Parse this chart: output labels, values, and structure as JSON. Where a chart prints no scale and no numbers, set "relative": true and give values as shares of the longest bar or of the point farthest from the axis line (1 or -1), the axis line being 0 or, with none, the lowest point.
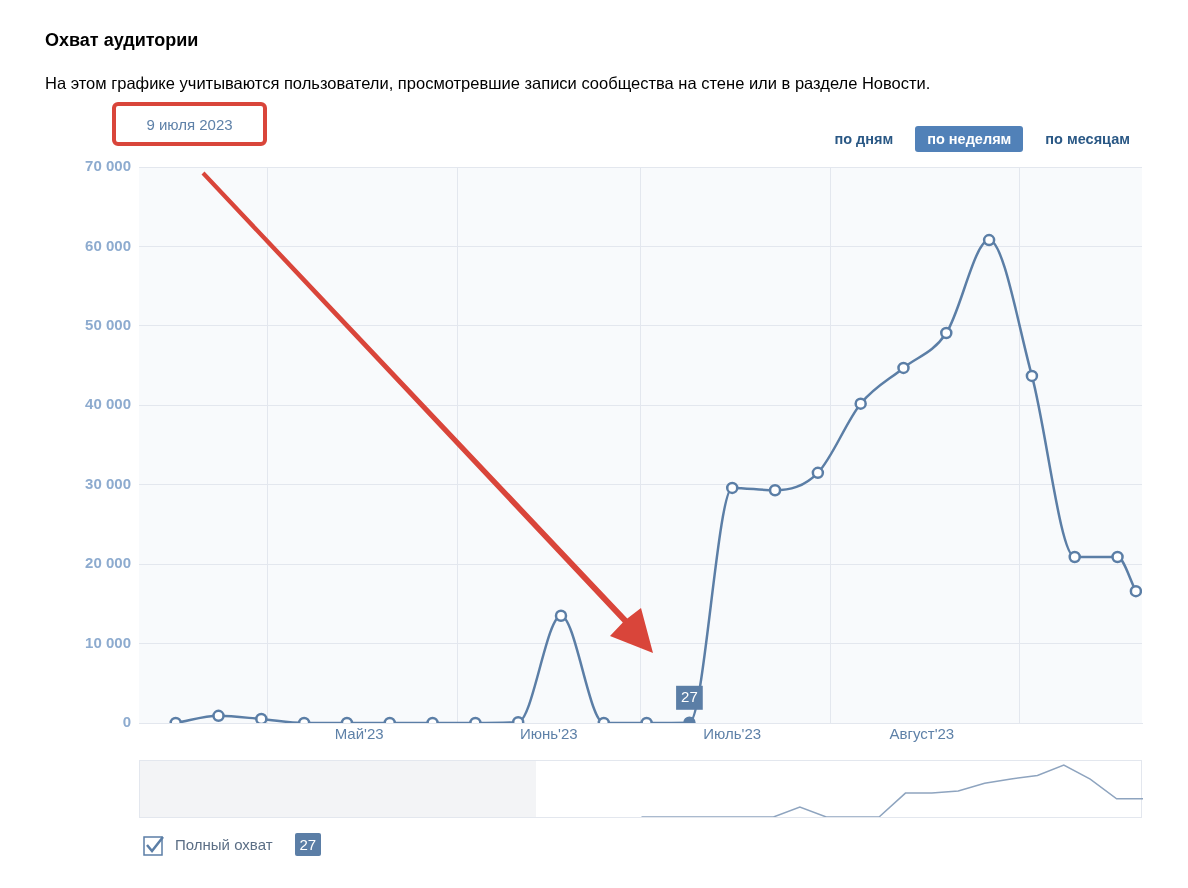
{
  "chart_data": [
    {
      "type": "line",
      "title": "Охват аудитории",
      "subtitle": "На этом графике учитываются пользователи, просмотревшие записи сообщества на стене или в разделе Новости.",
      "x": [
        "2023-04-16",
        "2023-04-23",
        "2023-04-30",
        "2023-05-07",
        "2023-05-14",
        "2023-05-21",
        "2023-05-28",
        "2023-06-04",
        "2023-06-11",
        "2023-06-18",
        "2023-06-25",
        "2023-07-02",
        "2023-07-09",
        "2023-07-16",
        "2023-07-23",
        "2023-07-30",
        "2023-08-06",
        "2023-08-13",
        "2023-08-20",
        "2023-08-27",
        "2023-09-03",
        "2023-09-10",
        "2023-09-17",
        "2023-09-20"
      ],
      "series": [
        {
          "name": "Полный охват",
          "color": "#5b7ea6",
          "values": [
            0,
            900,
            500,
            0,
            0,
            0,
            0,
            0,
            100,
            13500,
            0,
            0,
            27,
            29600,
            29300,
            31500,
            40200,
            44700,
            49100,
            60800,
            43700,
            20900,
            20900,
            16600
          ],
          "value_labels": [
            null,
            null,
            null,
            null,
            null,
            null,
            null,
            null,
            null,
            null,
            null,
            null,
            "27",
            null,
            null,
            null,
            null,
            null,
            null,
            null,
            null,
            null,
            null,
            null
          ]
        }
      ],
      "xlim": [
        "2023-04-10",
        "2023-09-21"
      ],
      "xticks": [
        {
          "value": "2023-05-01",
          "label": null
        },
        {
          "value": "2023-05-16",
          "label": "Май'23"
        },
        {
          "value": "2023-06-01",
          "label": null
        },
        {
          "value": "2023-06-16",
          "label": "Июнь'23"
        },
        {
          "value": "2023-07-01",
          "label": null
        },
        {
          "value": "2023-07-16",
          "label": "Июль'23"
        },
        {
          "value": "2023-08-01",
          "label": null
        },
        {
          "value": "2023-08-16",
          "label": "Август'23"
        },
        {
          "value": "2023-09-01",
          "label": null
        }
      ],
      "ylim": [
        0,
        70000
      ],
      "yticks": [
        {
          "value": 0,
          "label": "0"
        },
        {
          "value": 10000,
          "label": "10 000"
        },
        {
          "value": 20000,
          "label": "20 000"
        },
        {
          "value": 30000,
          "label": "30 000"
        },
        {
          "value": 40000,
          "label": "40 000"
        },
        {
          "value": 50000,
          "label": "50 000"
        },
        {
          "value": 60000,
          "label": "60 000"
        },
        {
          "value": 70000,
          "label": "70 000"
        }
      ],
      "grid": true,
      "marker": "circle",
      "line_style": "solid",
      "legend": "bottom left",
      "annotations": [
        "9 июля 2023",
        "по дням",
        "по неделям",
        "по месяцам",
        "27"
      ]
    },
    {
      "type": "line",
      "relative": true,
      "categories": [
        null,
        null,
        null,
        null,
        null,
        null,
        null,
        null,
        null,
        null,
        null,
        null,
        null,
        null,
        null,
        null,
        null,
        null,
        null,
        null,
        null,
        null,
        null,
        null,
        null,
        null,
        null,
        null,
        null,
        null,
        null,
        null,
        null,
        null,
        null,
        null,
        null,
        null,
        null
      ],
      "color": "#8ea4bf",
      "values": [
        null,
        null,
        null,
        null,
        null,
        null,
        null,
        null,
        null,
        null,
        null,
        null,
        null,
        null,
        null,
        null,
        null,
        null,
        null,
        0,
        0,
        0,
        0,
        0,
        0,
        0.19,
        0,
        0,
        0,
        0.46,
        0.46,
        0.5,
        0.65,
        0.73,
        0.8,
        1,
        0.73,
        0.35,
        0.35
      ]
    }
  ]
}
